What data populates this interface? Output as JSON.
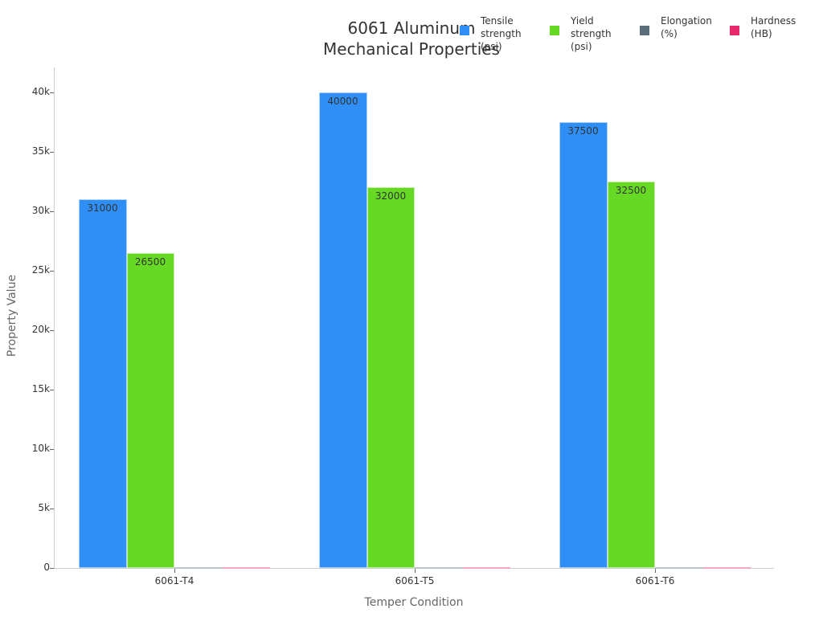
{
  "chart_data": {
    "type": "bar",
    "title": "6061 Aluminum Mechanical Properties",
    "title_lines": [
      "6061 Aluminum",
      "Mechanical Properties"
    ],
    "xlabel": "Temper Condition",
    "ylabel": "Property Value",
    "categories": [
      "6061-T4",
      "6061-T5",
      "6061-T6"
    ],
    "series": [
      {
        "name": "Tensile strength (psi)",
        "color": "#2f8ff6",
        "values": [
          31000,
          40000,
          37500
        ],
        "labels_shown": true
      },
      {
        "name": "Yield strength (psi)",
        "color": "#66d925",
        "values": [
          26500,
          32000,
          32500
        ],
        "labels_shown": true
      },
      {
        "name": "Elongation (%)",
        "color": "#5a6e7c",
        "values": [
          16,
          12,
          12
        ],
        "labels_shown": false
      },
      {
        "name": "Hardness (HB)",
        "color": "#e8296b",
        "values": [
          65,
          80,
          95
        ],
        "labels_shown": false
      }
    ],
    "ylim": [
      0,
      42000
    ],
    "yticks": [
      "0",
      "5k",
      "10k",
      "15k",
      "20k",
      "25k",
      "30k",
      "35k",
      "40k"
    ],
    "ytick_values": [
      0,
      5000,
      10000,
      15000,
      20000,
      25000,
      30000,
      35000,
      40000
    ],
    "grid": false,
    "legend_position": "top-right"
  },
  "legend": [
    {
      "lines": [
        "Tensile",
        "strength",
        "(psi)"
      ],
      "color": "#2f8ff6"
    },
    {
      "lines": [
        "Yield",
        "strength",
        "(psi)"
      ],
      "color": "#66d925"
    },
    {
      "lines": [
        "Elongation",
        "(%)"
      ],
      "color": "#5a6e7c"
    },
    {
      "lines": [
        "Hardness",
        "(HB)"
      ],
      "color": "#e8296b"
    }
  ]
}
